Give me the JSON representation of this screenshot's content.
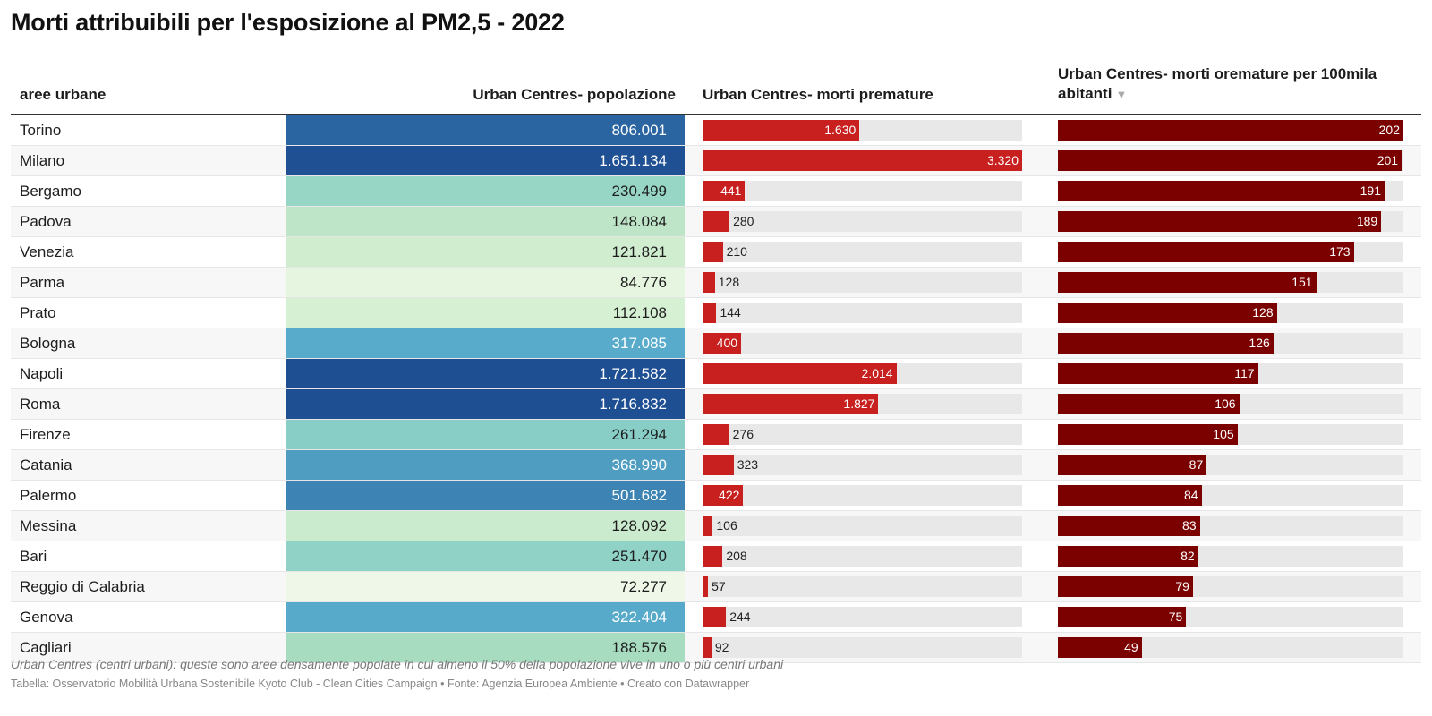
{
  "title": "Morti attribuibili per l'esposizione al PM2,5 - 2022",
  "headers": {
    "city": "aree urbane",
    "population": "Urban Centres- popolazione",
    "deaths": "Urban Centres- morti premature",
    "rate": "Urban Centres- morti oremature per 100mila abitanti",
    "sort_indicator": "▼"
  },
  "notes": "Urban Centres (centri urbani): queste sono aree densamente popolate in cui almeno il 50% della popolazione vive in uno o più centri urbani",
  "credits": "Tabella: Osservatorio Mobilità Urbana Sostenibile Kyoto Club - Clean Cities Campaign • Fonte: Agenzia Europea Ambiente • Creato con Datawrapper",
  "colors": {
    "deaths_bar": "#c81f1f",
    "rate_bar": "#7b0000",
    "bar_background": "#e8e8e8"
  },
  "chart_data": {
    "type": "table",
    "columns": [
      "aree urbane",
      "Urban Centres- popolazione",
      "Urban Centres- morti premature",
      "Urban Centres- morti oremature per 100mila abitanti"
    ],
    "sorted_by": "Urban Centres- morti oremature per 100mila abitanti",
    "sort_order": "descending",
    "deaths_max": 3320,
    "rate_max": 202,
    "rows": [
      {
        "city": "Torino",
        "population": 806001,
        "population_label": "806.001",
        "deaths": 1630,
        "deaths_label": "1.630",
        "rate": 202,
        "rate_label": "202"
      },
      {
        "city": "Milano",
        "population": 1651134,
        "population_label": "1.651.134",
        "deaths": 3320,
        "deaths_label": "3.320",
        "rate": 201,
        "rate_label": "201"
      },
      {
        "city": "Bergamo",
        "population": 230499,
        "population_label": "230.499",
        "deaths": 441,
        "deaths_label": "441",
        "rate": 191,
        "rate_label": "191"
      },
      {
        "city": "Padova",
        "population": 148084,
        "population_label": "148.084",
        "deaths": 280,
        "deaths_label": "280",
        "rate": 189,
        "rate_label": "189"
      },
      {
        "city": "Venezia",
        "population": 121821,
        "population_label": "121.821",
        "deaths": 210,
        "deaths_label": "210",
        "rate": 173,
        "rate_label": "173"
      },
      {
        "city": "Parma",
        "population": 84776,
        "population_label": "84.776",
        "deaths": 128,
        "deaths_label": "128",
        "rate": 151,
        "rate_label": "151"
      },
      {
        "city": "Prato",
        "population": 112108,
        "population_label": "112.108",
        "deaths": 144,
        "deaths_label": "144",
        "rate": 128,
        "rate_label": "128"
      },
      {
        "city": "Bologna",
        "population": 317085,
        "population_label": "317.085",
        "deaths": 400,
        "deaths_label": "400",
        "rate": 126,
        "rate_label": "126"
      },
      {
        "city": "Napoli",
        "population": 1721582,
        "population_label": "1.721.582",
        "deaths": 2014,
        "deaths_label": "2.014",
        "rate": 117,
        "rate_label": "117"
      },
      {
        "city": "Roma",
        "population": 1716832,
        "population_label": "1.716.832",
        "deaths": 1827,
        "deaths_label": "1.827",
        "rate": 106,
        "rate_label": "106"
      },
      {
        "city": "Firenze",
        "population": 261294,
        "population_label": "261.294",
        "deaths": 276,
        "deaths_label": "276",
        "rate": 105,
        "rate_label": "105"
      },
      {
        "city": "Catania",
        "population": 368990,
        "population_label": "368.990",
        "deaths": 323,
        "deaths_label": "323",
        "rate": 87,
        "rate_label": "87"
      },
      {
        "city": "Palermo",
        "population": 501682,
        "population_label": "501.682",
        "deaths": 422,
        "deaths_label": "422",
        "rate": 84,
        "rate_label": "84"
      },
      {
        "city": "Messina",
        "population": 128092,
        "population_label": "128.092",
        "deaths": 106,
        "deaths_label": "106",
        "rate": 83,
        "rate_label": "83"
      },
      {
        "city": "Bari",
        "population": 251470,
        "population_label": "251.470",
        "deaths": 208,
        "deaths_label": "208",
        "rate": 82,
        "rate_label": "82"
      },
      {
        "city": "Reggio di Calabria",
        "population": 72277,
        "population_label": "72.277",
        "deaths": 57,
        "deaths_label": "57",
        "rate": 79,
        "rate_label": "79"
      },
      {
        "city": "Genova",
        "population": 322404,
        "population_label": "322.404",
        "deaths": 244,
        "deaths_label": "244",
        "rate": 75,
        "rate_label": "75"
      },
      {
        "city": "Cagliari",
        "population": 188576,
        "population_label": "188.576",
        "deaths": 92,
        "deaths_label": "92",
        "rate": 49,
        "rate_label": "49"
      }
    ]
  }
}
